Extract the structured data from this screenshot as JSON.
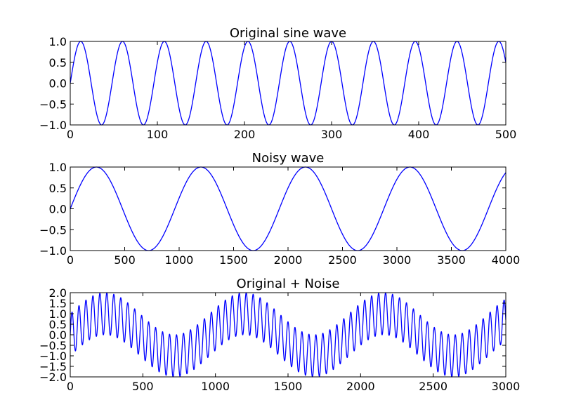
{
  "figure": {
    "background": "#ffffff",
    "line_color": "#0000ff"
  },
  "chart_data": [
    {
      "type": "line",
      "title": "Original sine wave",
      "xlabel": "",
      "ylabel": "",
      "xlim": [
        0,
        500
      ],
      "ylim": [
        -1.0,
        1.0
      ],
      "xticks": [
        0,
        100,
        200,
        300,
        400,
        500
      ],
      "yticks": [
        1.0,
        0.5,
        0.0,
        -0.5,
        -1.0
      ],
      "xtick_labels": [
        "0",
        "100",
        "200",
        "300",
        "400",
        "500"
      ],
      "ytick_labels": [
        "1.0",
        "0.5",
        "0.0",
        "−0.5",
        "−1.0"
      ],
      "grid": false,
      "series": [
        {
          "formula": "sin(2*pi*x/48)",
          "x_range": [
            0,
            500
          ],
          "sample_step": 0.5,
          "color": "#0000ff"
        }
      ]
    },
    {
      "type": "line",
      "title": "Noisy wave",
      "xlabel": "",
      "ylabel": "",
      "xlim": [
        0,
        4000
      ],
      "ylim": [
        -1.0,
        1.0
      ],
      "xticks": [
        0,
        500,
        1000,
        1500,
        2000,
        2500,
        3000,
        3500,
        4000
      ],
      "yticks": [
        1.0,
        0.5,
        0.0,
        -0.5,
        -1.0
      ],
      "xtick_labels": [
        "0",
        "500",
        "1000",
        "1500",
        "2000",
        "2500",
        "3000",
        "3500",
        "4000"
      ],
      "ytick_labels": [
        "1.0",
        "0.5",
        "0.0",
        "−0.5",
        "−1.0"
      ],
      "grid": false,
      "series": [
        {
          "formula": "sin(2*pi*x/960)",
          "x_range": [
            0,
            4000
          ],
          "sample_step": 4,
          "color": "#0000ff"
        }
      ]
    },
    {
      "type": "line",
      "title": "Original + Noise",
      "xlabel": "",
      "ylabel": "",
      "xlim": [
        0,
        3000
      ],
      "ylim": [
        -2.0,
        2.0
      ],
      "xticks": [
        0,
        500,
        1000,
        1500,
        2000,
        2500,
        3000
      ],
      "yticks": [
        2.0,
        1.5,
        1.0,
        0.5,
        0.0,
        -0.5,
        -1.0,
        -1.5,
        -2.0
      ],
      "xtick_labels": [
        "0",
        "500",
        "1000",
        "1500",
        "2000",
        "2500",
        "3000"
      ],
      "ytick_labels": [
        "2.0",
        "1.5",
        "1.0",
        "0.5",
        "0.0",
        "−0.5",
        "−1.0",
        "−1.5",
        "−2.0"
      ],
      "grid": false,
      "series": [
        {
          "formula": "sin(2*pi*x/48) + sin(2*pi*x/960)",
          "x_range": [
            0,
            3000
          ],
          "sample_step": 0.5,
          "color": "#0000ff"
        }
      ]
    }
  ]
}
